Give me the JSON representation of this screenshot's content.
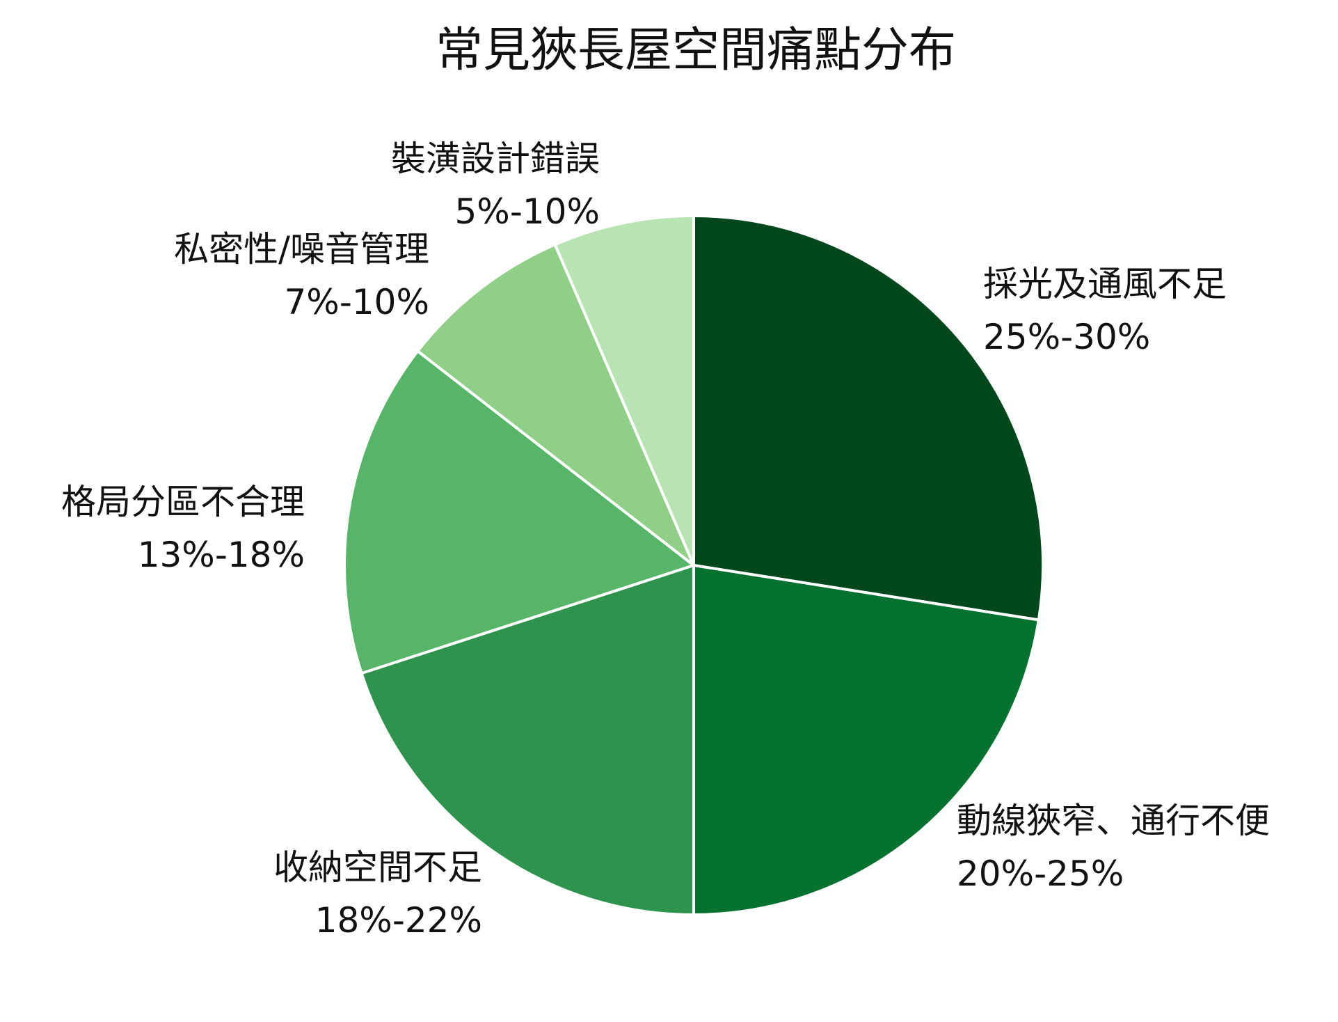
{
  "chart_data": {
    "type": "pie",
    "title": "常見狹長屋空間痛點分布",
    "start_angle_deg": 90,
    "direction": "clockwise",
    "slices": [
      {
        "label": "採光及通風不足",
        "range": "25%-30%",
        "value": 27.5,
        "color": "#00471b"
      },
      {
        "label": "動線狹窄、通行不便",
        "range": "20%-25%",
        "value": 22.5,
        "color": "#067230"
      },
      {
        "label": "收納空間不足",
        "range": "18%-22%",
        "value": 20,
        "color": "#2d934d"
      },
      {
        "label": "格局分區不合理",
        "range": "13%-18%",
        "value": 15.5,
        "color": "#57b567"
      },
      {
        "label": "私密性/噪音管理",
        "range": "7%-10%",
        "value": 8,
        "color": "#8fcf87"
      },
      {
        "label": "裝潢設計錯誤",
        "range": "5%-10%",
        "value": 6.5,
        "color": "#b8e3b3"
      }
    ],
    "slice_border_color": "#ffffff"
  }
}
